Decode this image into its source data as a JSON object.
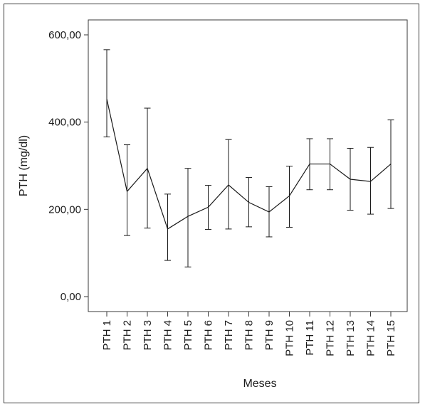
{
  "chart_data": {
    "type": "line",
    "title": "",
    "xlabel": "Meses",
    "ylabel": "PTH (mg/dl)",
    "ylim": [
      0,
      600
    ],
    "y_ticks": [
      0,
      200,
      400,
      600
    ],
    "y_tick_labels": [
      "0,00",
      "200,00",
      "400,00",
      "600,00"
    ],
    "categories": [
      "PTH 1",
      "PTH 2",
      "PTH 3",
      "PTH 4",
      "PTH 5",
      "PTH 6",
      "PTH 7",
      "PTH 8",
      "PTH 9",
      "PTH 10",
      "PTH 11",
      "PTH 12",
      "PTH 13",
      "PTH 14",
      "PTH 15"
    ],
    "series": [
      {
        "values": [
          453,
          241,
          294,
          155,
          184,
          205,
          256,
          216,
          194,
          231,
          304,
          304,
          269,
          264,
          304
        ],
        "error_low": [
          366,
          140,
          157,
          83,
          68,
          154,
          155,
          160,
          137,
          159,
          245,
          245,
          198,
          189,
          202
        ],
        "error_high": [
          566,
          348,
          432,
          235,
          294,
          255,
          360,
          273,
          252,
          299,
          362,
          362,
          340,
          342,
          405
        ]
      }
    ],
    "grid": false,
    "legend": "none"
  },
  "colors": {
    "line": "#1a1a1a",
    "axis": "#3a3a3a",
    "background": "#ffffff"
  }
}
